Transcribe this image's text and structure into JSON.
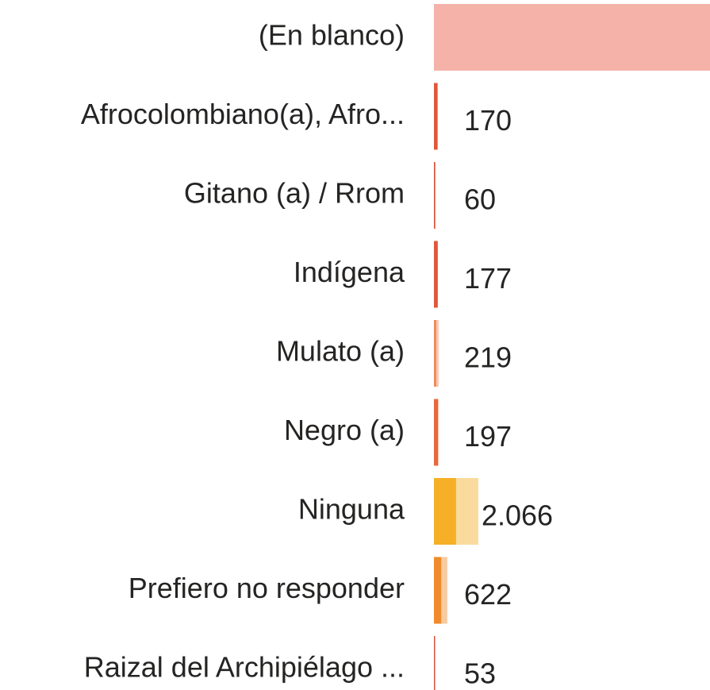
{
  "chart_data": {
    "type": "bar",
    "categories": [
      "(En blanco)",
      "Afrocolombiano(a), Afro...",
      "Gitano (a) / Rrom",
      "Indígena",
      "Mulato (a)",
      "Negro (a)",
      "Ninguna",
      "Prefiero no responder",
      "Raizal del Archipiélago ..."
    ],
    "values": [
      13500,
      170,
      60,
      177,
      219,
      197,
      2066,
      622,
      53
    ],
    "value_labels": [
      null,
      "170",
      "60",
      "177",
      "219",
      "197",
      "2.066",
      "622",
      "53"
    ],
    "highlighted": [
      0,
      170,
      60,
      177,
      110,
      197,
      1030,
      340,
      53
    ],
    "colors": [
      "#e8553f",
      "#e0573a",
      "#d9503a",
      "#e0573a",
      "#f08a5a",
      "#e8683a",
      "#f5b027",
      "#f08a2c",
      "#d9503a"
    ]
  }
}
